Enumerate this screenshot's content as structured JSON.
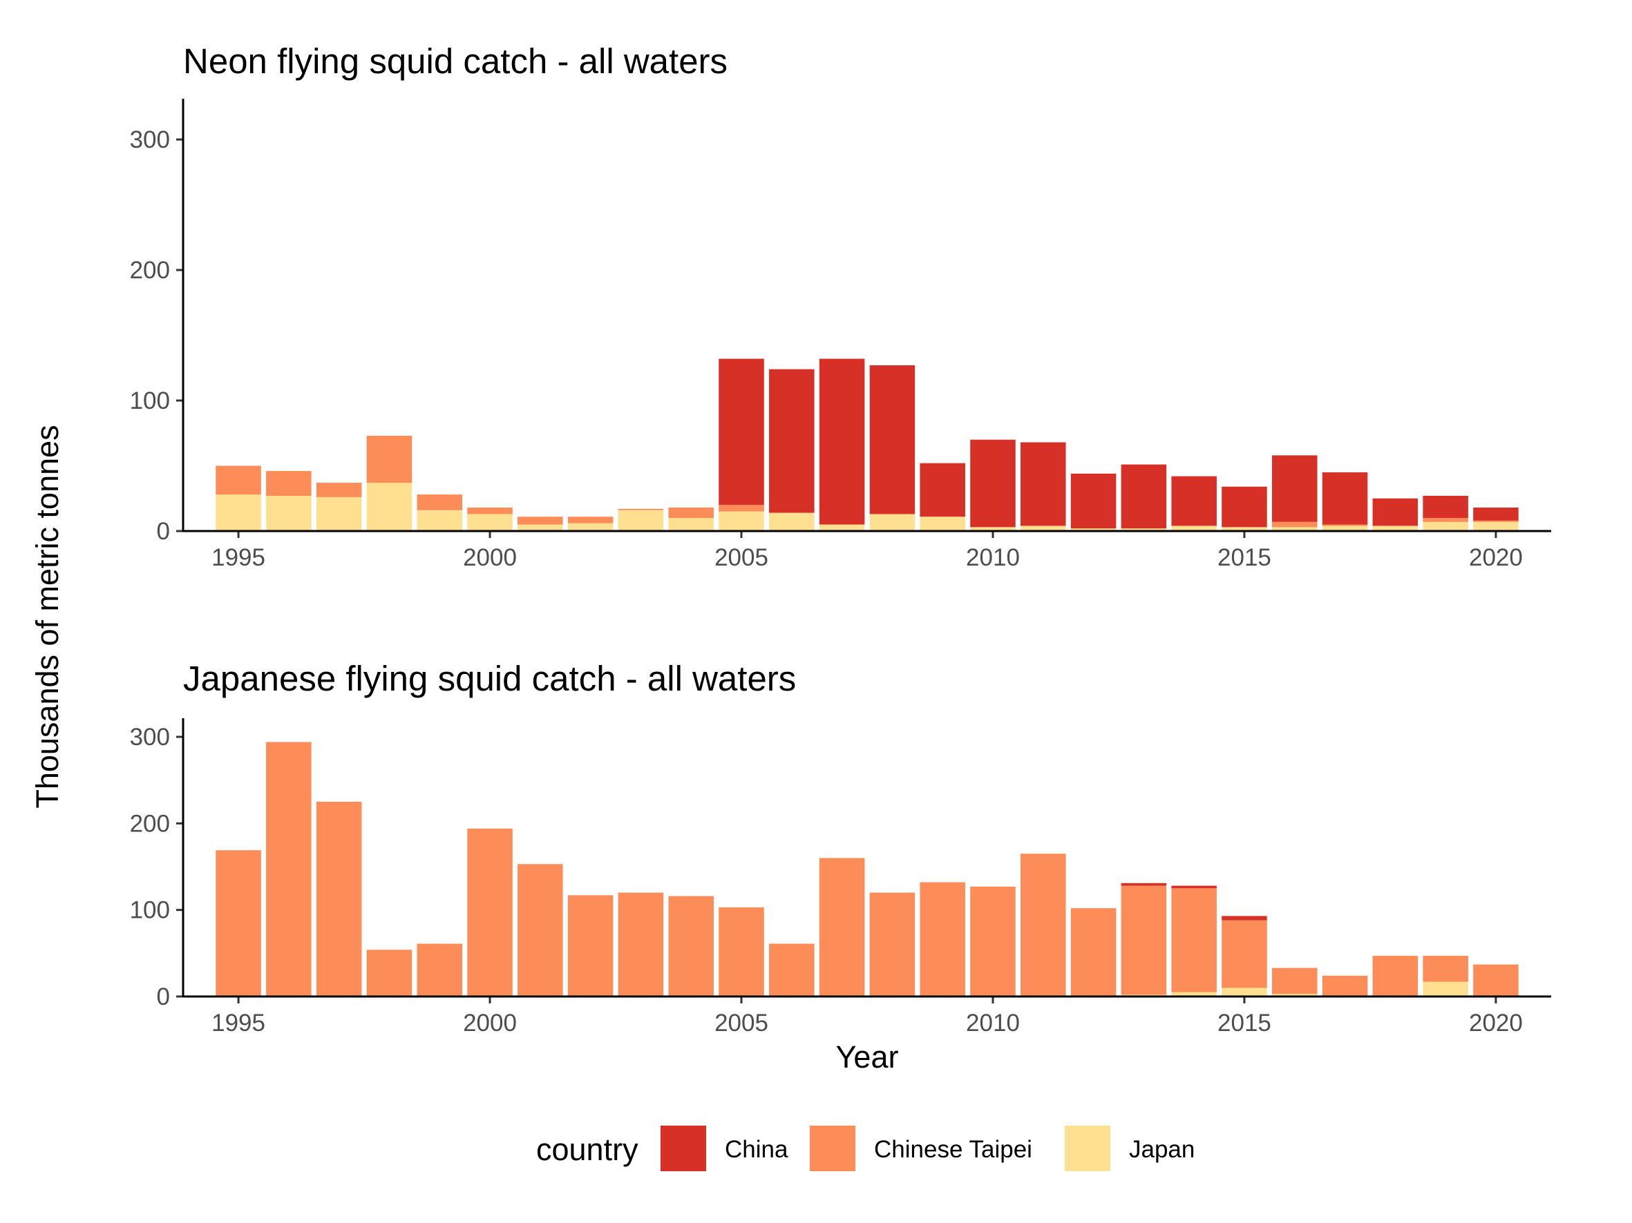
{
  "figure": {
    "ylabel": "Thousands of metric tonnes",
    "xlabel": "Year"
  },
  "legend": {
    "title": "country",
    "items": [
      {
        "label": "China",
        "color": "#D73027"
      },
      {
        "label": "Chinese Taipei",
        "color": "#FC8D59"
      },
      {
        "label": "Japan",
        "color": "#FEE090"
      }
    ]
  },
  "chart_data": [
    {
      "type": "bar",
      "stacked": true,
      "title": "Neon flying squid catch - all waters",
      "xlabel": "",
      "ylabel": "Thousands of metric tonnes",
      "ylim": [
        0,
        320
      ],
      "xlim": [
        1993.9,
        2021.1
      ],
      "y_ticks": [
        0,
        100,
        200,
        300
      ],
      "x_ticks": [
        1995,
        2000,
        2005,
        2010,
        2015,
        2020
      ],
      "grid": false,
      "categories": [
        1995,
        1996,
        1997,
        1998,
        1999,
        2000,
        2001,
        2002,
        2003,
        2004,
        2005,
        2006,
        2007,
        2008,
        2009,
        2010,
        2011,
        2012,
        2013,
        2014,
        2015,
        2016,
        2017,
        2018,
        2019,
        2020
      ],
      "series": [
        {
          "name": "Japan",
          "color": "#FEE090",
          "values": [
            28,
            27,
            26,
            37,
            16,
            13,
            5,
            6,
            16,
            10,
            15,
            14,
            5,
            13,
            11,
            3,
            4,
            2,
            2,
            4,
            3,
            3,
            4,
            4,
            7,
            7
          ]
        },
        {
          "name": "Chinese Taipei",
          "color": "#FC8D59",
          "values": [
            22,
            19,
            11,
            36,
            12,
            5,
            6,
            5,
            1,
            8,
            5,
            0,
            0,
            0,
            0,
            0,
            0,
            0,
            0,
            0,
            0,
            4,
            1,
            0,
            3,
            1
          ]
        },
        {
          "name": "China",
          "color": "#D73027",
          "values": [
            0,
            0,
            0,
            0,
            0,
            0,
            0,
            0,
            0,
            0,
            112,
            110,
            127,
            114,
            41,
            67,
            64,
            42,
            49,
            38,
            31,
            51,
            40,
            21,
            17,
            10
          ]
        }
      ]
    },
    {
      "type": "bar",
      "stacked": true,
      "title": "Japanese flying squid catch - all waters",
      "xlabel": "Year",
      "ylabel": "Thousands of metric tonnes",
      "ylim": [
        0,
        320
      ],
      "xlim": [
        1993.9,
        2021.1
      ],
      "y_ticks": [
        0,
        100,
        200,
        300
      ],
      "x_ticks": [
        1995,
        2000,
        2005,
        2010,
        2015,
        2020
      ],
      "grid": false,
      "categories": [
        1995,
        1996,
        1997,
        1998,
        1999,
        2000,
        2001,
        2002,
        2003,
        2004,
        2005,
        2006,
        2007,
        2008,
        2009,
        2010,
        2011,
        2012,
        2013,
        2014,
        2015,
        2016,
        2017,
        2018,
        2019,
        2020
      ],
      "series": [
        {
          "name": "Japan",
          "color": "#FEE090",
          "values": [
            0,
            0,
            0,
            0,
            0,
            0,
            0,
            0,
            0,
            0,
            0,
            0,
            0,
            0,
            0,
            0,
            0,
            0,
            2,
            5,
            10,
            3,
            0,
            0,
            17,
            0
          ]
        },
        {
          "name": "Chinese Taipei",
          "color": "#FC8D59",
          "values": [
            169,
            294,
            225,
            54,
            61,
            194,
            153,
            117,
            120,
            116,
            103,
            61,
            160,
            120,
            132,
            127,
            165,
            102,
            126,
            120,
            78,
            30,
            24,
            47,
            30,
            37
          ]
        },
        {
          "name": "China",
          "color": "#D73027",
          "values": [
            0,
            0,
            0,
            0,
            0,
            0,
            0,
            0,
            0,
            0,
            0,
            0,
            0,
            0,
            0,
            0,
            0,
            0,
            3,
            3,
            5,
            0,
            0,
            0,
            0,
            0
          ]
        }
      ]
    }
  ]
}
